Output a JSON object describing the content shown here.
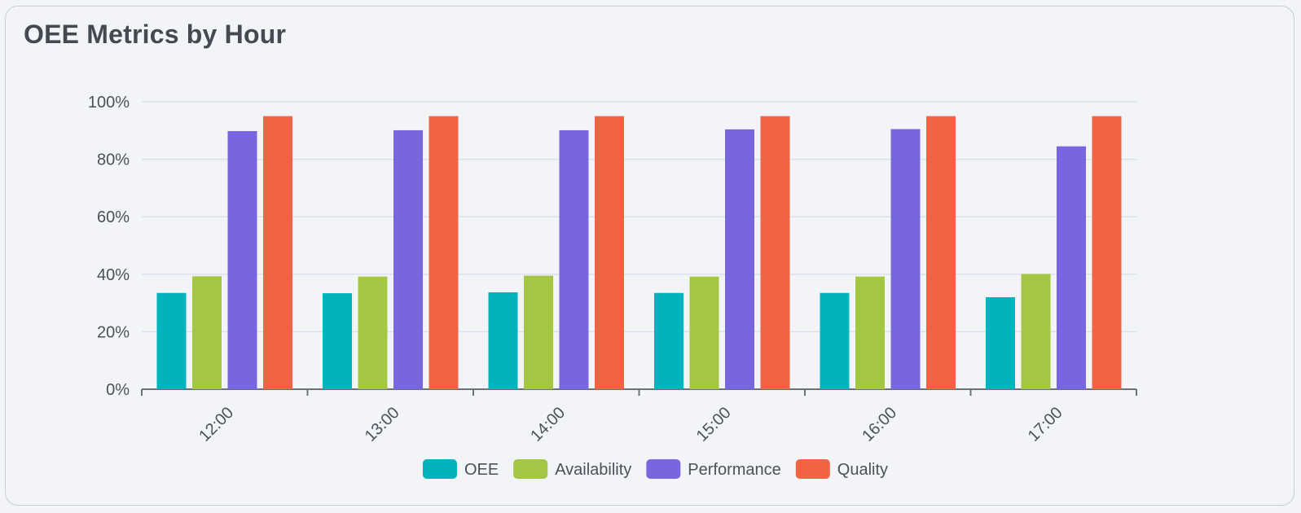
{
  "card": {
    "title": "OEE Metrics by Hour"
  },
  "chart_data": {
    "type": "bar",
    "title": "OEE Metrics by Hour",
    "xlabel": "",
    "ylabel": "",
    "ylim": [
      0,
      100
    ],
    "y_ticks": [
      0,
      20,
      40,
      60,
      80,
      100
    ],
    "y_tick_suffix": "%",
    "y_tick_labels": [
      "0%",
      "20%",
      "40%",
      "60%",
      "80%",
      "100%"
    ],
    "grid": true,
    "legend_position": "bottom-center",
    "categories": [
      "12:00",
      "13:00",
      "14:00",
      "15:00",
      "16:00",
      "17:00"
    ],
    "series": [
      {
        "name": "OEE",
        "color": "#00b3bd",
        "values": [
          33.5,
          33.4,
          33.7,
          33.5,
          33.5,
          32.0
        ]
      },
      {
        "name": "Availability",
        "color": "#a3c743",
        "values": [
          39.3,
          39.2,
          39.5,
          39.2,
          39.2,
          40.1
        ]
      },
      {
        "name": "Performance",
        "color": "#7866df",
        "values": [
          89.8,
          90.1,
          90.1,
          90.4,
          90.5,
          84.5
        ]
      },
      {
        "name": "Quality",
        "color": "#f26344",
        "values": [
          95.0,
          95.0,
          95.0,
          95.0,
          95.0,
          95.0
        ]
      }
    ]
  }
}
